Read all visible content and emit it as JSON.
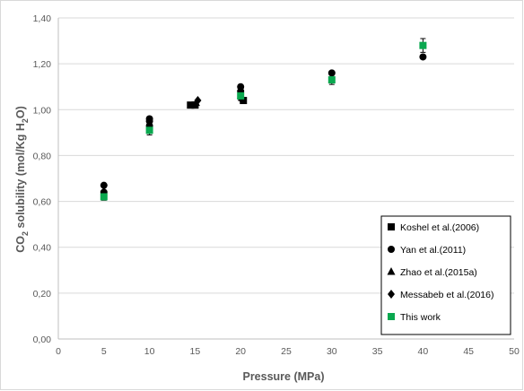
{
  "chart_data": {
    "type": "scatter",
    "xlabel": "Pressure (MPa)",
    "ylabel_parts": {
      "pre": "CO",
      "sub": "2",
      "mid": " solubility (mol/Kg H",
      "sub2": "2",
      "post": "O)"
    },
    "xlim": [
      0,
      50
    ],
    "ylim": [
      0.0,
      1.4
    ],
    "x_ticks": [
      0,
      5,
      10,
      15,
      20,
      25,
      30,
      35,
      40,
      45,
      50
    ],
    "y_ticks": [
      0.0,
      0.2,
      0.4,
      0.6,
      0.8,
      1.0,
      1.2,
      1.4
    ],
    "y_tick_labels": [
      "0,00",
      "0,20",
      "0,40",
      "0,60",
      "0,80",
      "1,00",
      "1,20",
      "1,40"
    ],
    "x_tick_labels": [
      "0",
      "5",
      "10",
      "15",
      "20",
      "25",
      "30",
      "35",
      "40",
      "45",
      "50"
    ],
    "grid": "horizontal",
    "legend_position": "bottom-right",
    "series": [
      {
        "name": "Koshel et al.(2006)",
        "marker": "square",
        "color": "#000000",
        "points": [
          {
            "x": 14.5,
            "y": 1.02
          },
          {
            "x": 15.0,
            "y": 1.02
          },
          {
            "x": 20.3,
            "y": 1.04
          }
        ]
      },
      {
        "name": "Yan et al.(2011)",
        "marker": "circle",
        "color": "#000000",
        "points": [
          {
            "x": 5,
            "y": 0.67
          },
          {
            "x": 5,
            "y": 0.64
          },
          {
            "x": 10,
            "y": 0.96
          },
          {
            "x": 10,
            "y": 0.95
          },
          {
            "x": 10,
            "y": 0.93
          },
          {
            "x": 20,
            "y": 1.1
          },
          {
            "x": 20,
            "y": 1.08
          },
          {
            "x": 30,
            "y": 1.16
          },
          {
            "x": 40,
            "y": 1.23
          }
        ]
      },
      {
        "name": "Zhao et al.(2015a)",
        "marker": "triangle",
        "color": "#000000",
        "points": [
          {
            "x": 15.1,
            "y": 1.03
          }
        ]
      },
      {
        "name": "Messabeb et al.(2016)",
        "marker": "diamond",
        "color": "#000000",
        "points": [
          {
            "x": 15.3,
            "y": 1.04
          },
          {
            "x": 20.0,
            "y": 1.05
          }
        ]
      },
      {
        "name": "This work",
        "marker": "square",
        "color": "#0aa84f",
        "points": [
          {
            "x": 5,
            "y": 0.62,
            "err": 0.015
          },
          {
            "x": 10,
            "y": 0.91,
            "err": 0.02
          },
          {
            "x": 20,
            "y": 1.06,
            "err": 0.02
          },
          {
            "x": 30,
            "y": 1.13,
            "err": 0.02
          },
          {
            "x": 40,
            "y": 1.28,
            "err": 0.03
          }
        ]
      }
    ]
  }
}
